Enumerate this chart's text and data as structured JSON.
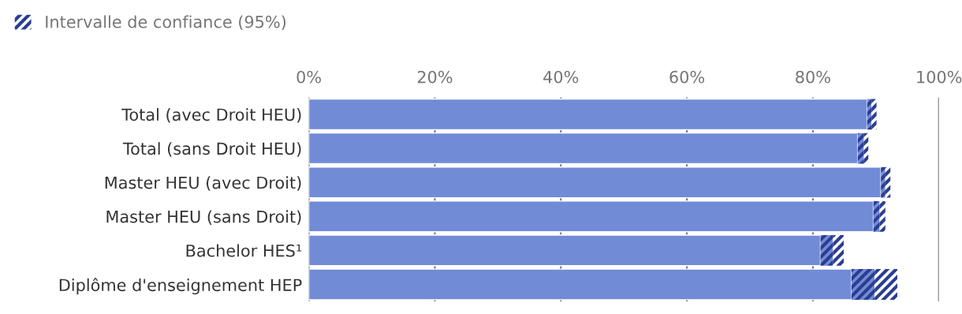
{
  "chart_data": {
    "type": "bar",
    "orientation": "horizontal",
    "stacked": true,
    "legend": "top left",
    "grid": "x",
    "categories": [
      "Total (avec Droit HEU)",
      "Total (sans Droit HEU)",
      "Master HEU (avec Droit)",
      "Master HEU (sans Droit)",
      "Bachelor HES¹",
      "Diplôme d'enseignement HEP"
    ],
    "series": [
      {
        "color": "#728bd7",
        "values": [
          88.6,
          87.1,
          90.8,
          89.6,
          81.2,
          86.1
        ]
      },
      {
        "color": "#2b3d8f",
        "values": [
          0.7,
          1.0,
          0.7,
          1.0,
          2.0,
          3.7
        ]
      },
      {
        "name": "Intervalle de confiance (95%)",
        "color": "#2b3d8f",
        "values": [
          0.8,
          0.7,
          0.8,
          0.9,
          1.7,
          3.6
        ]
      }
    ],
    "xlim": [
      0,
      100
    ],
    "xticks": [
      {
        "value": 0,
        "label": "0%"
      },
      {
        "value": 20,
        "label": "20%"
      },
      {
        "value": 40,
        "label": "40%"
      },
      {
        "value": 60,
        "label": "60%"
      },
      {
        "value": 80,
        "label": "80%"
      },
      {
        "value": 100,
        "label": "100%"
      }
    ]
  }
}
